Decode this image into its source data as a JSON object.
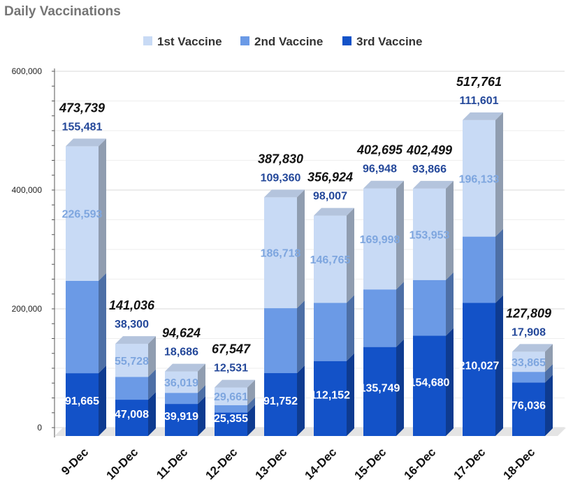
{
  "chart_data": {
    "type": "bar",
    "stacked": true,
    "style": "3d",
    "title": "Daily Vaccinations",
    "categories": [
      "9-Dec",
      "10-Dec",
      "11-Dec",
      "12-Dec",
      "13-Dec",
      "14-Dec",
      "15-Dec",
      "16-Dec",
      "17-Dec",
      "18-Dec"
    ],
    "series": [
      {
        "name": "3rd Vaccine",
        "color": "#1352c8",
        "label_color": "#1a3e8c",
        "values": [
          91665,
          47008,
          39919,
          25355,
          91752,
          112152,
          135749,
          154680,
          210027,
          76036
        ]
      },
      {
        "name": "2nd Vaccine",
        "color": "#6b9ae6",
        "label_color": "#24489a",
        "values": [
          155481,
          38300,
          18686,
          12531,
          109360,
          98007,
          96948,
          93866,
          111601,
          17908
        ]
      },
      {
        "name": "1st Vaccine",
        "color": "#c8daf5",
        "label_color": "#7ea6df",
        "values": [
          226593,
          55728,
          36019,
          29661,
          186718,
          146765,
          169998,
          153953,
          196133,
          33865
        ]
      }
    ],
    "value_labels": [
      [
        "91,665",
        "47,008",
        "39,919",
        "25,355",
        "91,752",
        "112,152",
        "135,749",
        "154,680",
        "210,027",
        "76,036"
      ],
      [
        "155,481",
        "38,300",
        "18,686",
        "12,531",
        "109,360",
        "98,007",
        "96,948",
        "93,866",
        "111,601",
        "17,908"
      ],
      [
        "226,593",
        "55,728",
        "36,019",
        "29,661",
        "186,718",
        "146,765",
        "169,998",
        "153,953",
        "196,133",
        "33,865"
      ]
    ],
    "totals": [
      473739,
      141036,
      94624,
      67547,
      387830,
      356924,
      402695,
      402499,
      517761,
      127809
    ],
    "total_labels": [
      "473,739",
      "141,036",
      "94,624",
      "67,547",
      "387,830",
      "356,924",
      "402,695",
      "402,499",
      "517,761",
      "127,809"
    ],
    "ylim": [
      0,
      600000
    ],
    "yticks": [
      0,
      200000,
      400000,
      600000
    ],
    "ytick_labels": [
      "0",
      "200,000",
      "400,000",
      "600,000"
    ],
    "legend_order": [
      "1st Vaccine",
      "2nd Vaccine",
      "3rd Vaccine"
    ],
    "legend_position": "top",
    "grid": true
  }
}
